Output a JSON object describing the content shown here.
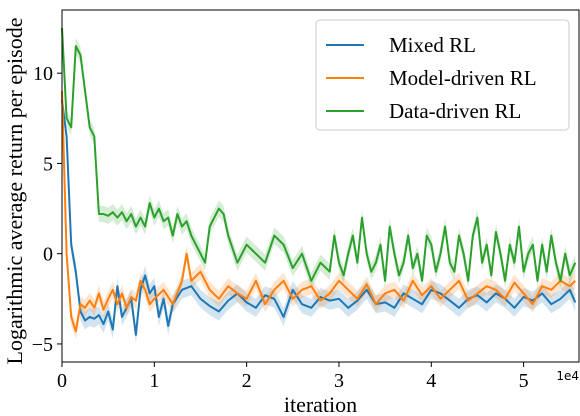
{
  "chart_data": {
    "type": "line",
    "xlabel": "iteration",
    "ylabel": "Logarithmic average return per episode",
    "x_offset_label": "1e4",
    "xlim": [
      0,
      5.6
    ],
    "ylim": [
      -6,
      13.5
    ],
    "xticks": [
      0,
      1,
      2,
      3,
      4,
      5
    ],
    "yticks": [
      -5,
      0,
      5,
      10
    ],
    "grid": false,
    "legend_position": "top-right",
    "series": [
      {
        "name": "Mixed RL",
        "color": "#1f77b4",
        "band": 0.5,
        "x": [
          0,
          0.05,
          0.1,
          0.15,
          0.2,
          0.25,
          0.3,
          0.35,
          0.4,
          0.45,
          0.5,
          0.55,
          0.6,
          0.65,
          0.7,
          0.75,
          0.8,
          0.85,
          0.9,
          0.95,
          1.0,
          1.05,
          1.1,
          1.15,
          1.2,
          1.3,
          1.4,
          1.5,
          1.6,
          1.7,
          1.8,
          1.9,
          2.0,
          2.1,
          2.2,
          2.3,
          2.4,
          2.5,
          2.6,
          2.7,
          2.8,
          2.9,
          3.0,
          3.1,
          3.2,
          3.3,
          3.4,
          3.5,
          3.6,
          3.7,
          3.8,
          3.9,
          4.0,
          4.1,
          4.2,
          4.3,
          4.4,
          4.5,
          4.6,
          4.7,
          4.8,
          4.9,
          5.0,
          5.1,
          5.2,
          5.3,
          5.4,
          5.5,
          5.56
        ],
        "values": [
          8.5,
          6.5,
          0.5,
          -1.0,
          -3.2,
          -3.7,
          -3.5,
          -3.6,
          -3.4,
          -3.9,
          -3.2,
          -4.2,
          -1.8,
          -3.5,
          -3.0,
          -2.5,
          -4.5,
          -2.0,
          -1.2,
          -2.2,
          -1.8,
          -3.5,
          -2.5,
          -4.0,
          -2.8,
          -2.0,
          -1.8,
          -2.5,
          -2.9,
          -3.2,
          -2.6,
          -2.2,
          -2.7,
          -3.0,
          -2.3,
          -2.5,
          -3.5,
          -2.0,
          -2.8,
          -3.0,
          -2.4,
          -2.6,
          -2.5,
          -3.0,
          -2.6,
          -2.0,
          -2.8,
          -2.7,
          -3.0,
          -2.2,
          -2.5,
          -2.8,
          -2.0,
          -2.2,
          -2.6,
          -3.0,
          -2.5,
          -2.3,
          -2.7,
          -2.2,
          -2.5,
          -3.0,
          -2.4,
          -2.6,
          -2.2,
          -2.8,
          -2.5,
          -2.0,
          -2.7
        ]
      },
      {
        "name": "Model-driven RL",
        "color": "#ff7f0e",
        "band": 0.45,
        "x": [
          0,
          0.05,
          0.1,
          0.15,
          0.2,
          0.25,
          0.3,
          0.35,
          0.4,
          0.45,
          0.5,
          0.55,
          0.6,
          0.65,
          0.7,
          0.75,
          0.8,
          0.85,
          0.9,
          0.95,
          1.0,
          1.1,
          1.2,
          1.3,
          1.35,
          1.4,
          1.5,
          1.6,
          1.7,
          1.8,
          1.9,
          2.0,
          2.1,
          2.2,
          2.3,
          2.4,
          2.5,
          2.6,
          2.7,
          2.8,
          2.9,
          3.0,
          3.1,
          3.2,
          3.3,
          3.4,
          3.5,
          3.6,
          3.7,
          3.8,
          3.9,
          4.0,
          4.1,
          4.2,
          4.3,
          4.4,
          4.5,
          4.6,
          4.7,
          4.8,
          4.9,
          5.0,
          5.1,
          5.2,
          5.3,
          5.4,
          5.5,
          5.56
        ],
        "values": [
          9.0,
          0.0,
          -3.5,
          -4.3,
          -2.8,
          -3.0,
          -2.6,
          -3.0,
          -2.2,
          -3.1,
          -2.5,
          -2.0,
          -2.8,
          -2.2,
          -3.0,
          -2.4,
          -2.6,
          -1.5,
          -2.0,
          -2.8,
          -2.5,
          -2.0,
          -2.8,
          -1.5,
          0.0,
          -1.5,
          -1.0,
          -2.0,
          -2.5,
          -1.8,
          -2.2,
          -2.5,
          -1.5,
          -2.8,
          -2.0,
          -1.5,
          -2.5,
          -2.0,
          -1.8,
          -2.6,
          -2.2,
          -1.5,
          -2.0,
          -2.5,
          -1.7,
          -2.8,
          -2.2,
          -2.0,
          -2.6,
          -1.5,
          -2.3,
          -1.8,
          -2.5,
          -2.0,
          -1.5,
          -2.6,
          -2.2,
          -1.8,
          -2.0,
          -2.5,
          -1.6,
          -2.2,
          -2.8,
          -1.8,
          -2.0,
          -1.5,
          -1.8,
          -1.5
        ]
      },
      {
        "name": "Data-driven RL",
        "color": "#2ca02c",
        "band": 0.45,
        "x": [
          0,
          0.05,
          0.1,
          0.15,
          0.2,
          0.25,
          0.3,
          0.35,
          0.4,
          0.45,
          0.5,
          0.55,
          0.6,
          0.65,
          0.7,
          0.75,
          0.8,
          0.85,
          0.9,
          0.95,
          1.0,
          1.05,
          1.1,
          1.15,
          1.2,
          1.25,
          1.3,
          1.35,
          1.4,
          1.45,
          1.5,
          1.55,
          1.6,
          1.65,
          1.7,
          1.75,
          1.8,
          1.9,
          2.0,
          2.1,
          2.2,
          2.3,
          2.4,
          2.5,
          2.6,
          2.7,
          2.8,
          2.9,
          2.95,
          3.0,
          3.05,
          3.1,
          3.15,
          3.2,
          3.25,
          3.3,
          3.35,
          3.4,
          3.45,
          3.5,
          3.55,
          3.6,
          3.65,
          3.7,
          3.75,
          3.8,
          3.85,
          3.9,
          3.95,
          4.0,
          4.05,
          4.1,
          4.15,
          4.2,
          4.25,
          4.3,
          4.35,
          4.4,
          4.45,
          4.5,
          4.55,
          4.6,
          4.65,
          4.7,
          4.75,
          4.8,
          4.85,
          4.9,
          4.95,
          5.0,
          5.05,
          5.1,
          5.15,
          5.2,
          5.25,
          5.3,
          5.35,
          5.4,
          5.45,
          5.5,
          5.56
        ],
        "values": [
          12.5,
          7.5,
          7.0,
          11.5,
          11.0,
          9.0,
          7.0,
          6.5,
          2.2,
          2.2,
          2.1,
          2.3,
          2.0,
          2.3,
          1.8,
          2.2,
          1.5,
          2.0,
          1.5,
          2.8,
          2.0,
          2.5,
          1.8,
          2.0,
          1.0,
          2.2,
          1.5,
          1.8,
          1.0,
          0.5,
          0.0,
          -0.5,
          1.5,
          2.0,
          2.5,
          2.2,
          1.0,
          -0.5,
          0.5,
          0.0,
          -0.5,
          1.0,
          0.5,
          -0.8,
          0.0,
          -1.5,
          -0.5,
          -1.0,
          1.0,
          -0.5,
          -1.2,
          0.0,
          1.0,
          -0.5,
          2.0,
          0.0,
          -1.0,
          -0.5,
          0.5,
          -1.5,
          1.5,
          0.0,
          -1.2,
          -0.5,
          1.0,
          -0.8,
          0.0,
          -1.5,
          1.0,
          0.5,
          -1.0,
          0.0,
          1.5,
          -0.5,
          -1.0,
          1.0,
          0.0,
          -1.5,
          1.0,
          2.0,
          -0.5,
          0.5,
          -1.2,
          1.2,
          0.0,
          -1.5,
          0.5,
          -0.5,
          1.5,
          -1.0,
          0.0,
          0.5,
          -1.5,
          0.5,
          -1.0,
          1.0,
          -0.5,
          -1.5,
          0.0,
          -1.2,
          -0.5
        ]
      }
    ]
  }
}
